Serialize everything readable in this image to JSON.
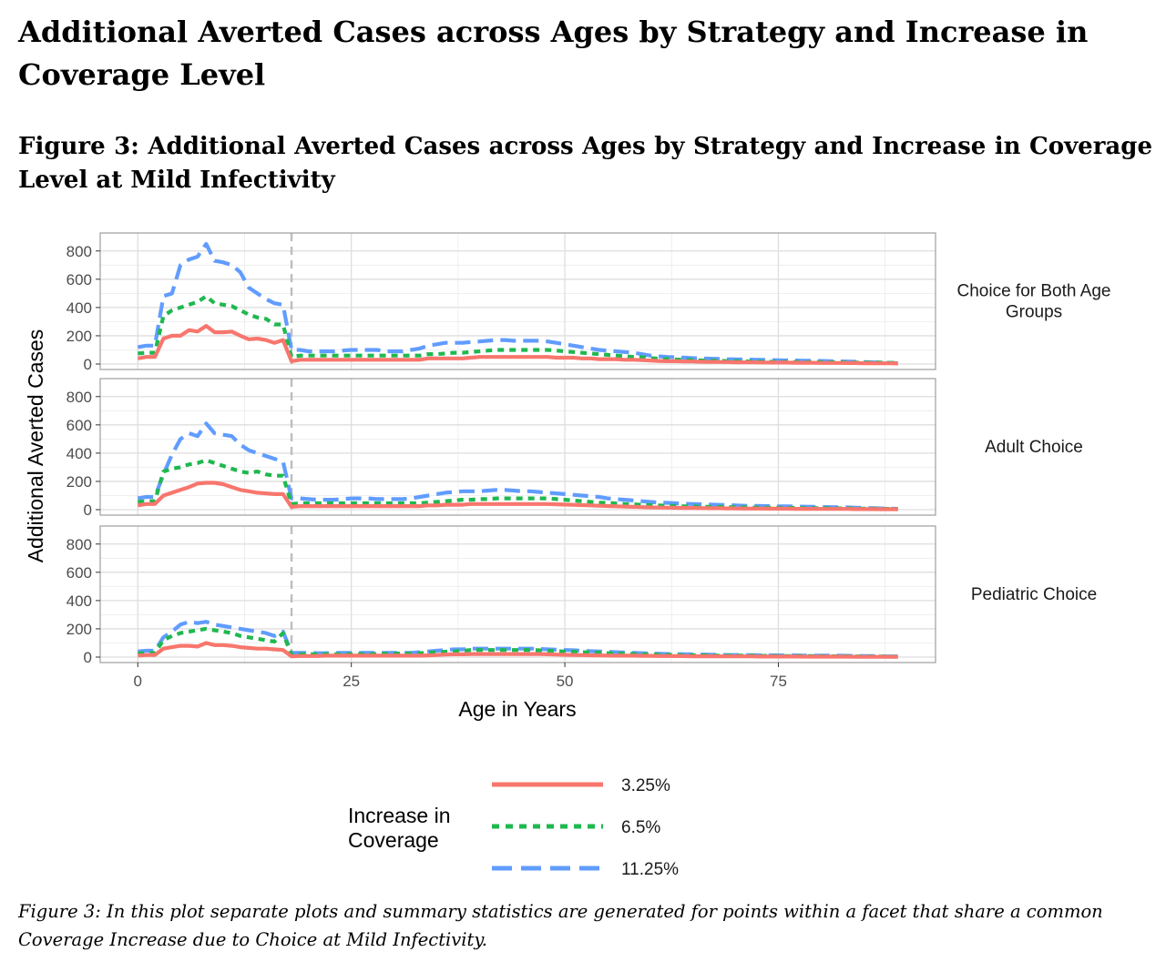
{
  "document": {
    "title": "Additional Averted Cases across Ages by Strategy and Increase in Coverage Level",
    "figure_title": "Figure 3: Additional Averted Cases across Ages by Strategy and Increase in Coverage Level at Mild Infectivity",
    "caption": "Figure 3: In this plot separate plots and summary statistics are generated for points within a facet that share a common Coverage Increase due to Choice at Mild Infectivity."
  },
  "colors": {
    "series_3_25": "#F8766D",
    "series_6_5": "#1FB84F",
    "series_11_25": "#619CFF",
    "grid": "#DEDEDE",
    "panel_border": "#9E9E9E",
    "vline": "#BDBDBD"
  },
  "chart_data": {
    "type": "line",
    "xlabel": "Age in Years",
    "ylabel": "Additional Averted Cases",
    "xlim": [
      0,
      89
    ],
    "ylim": [
      0,
      850
    ],
    "x_ticks": [
      0,
      25,
      50,
      75
    ],
    "y_ticks": [
      0,
      200,
      400,
      600,
      800
    ],
    "grid": true,
    "legend_position": "bottom",
    "legend_title": "Increase in Coverage",
    "reference_line": {
      "x": 18,
      "style": "dashed"
    },
    "x": [
      0,
      1,
      2,
      3,
      4,
      5,
      6,
      7,
      8,
      9,
      10,
      11,
      12,
      13,
      14,
      15,
      16,
      17,
      18,
      19,
      20,
      21,
      22,
      23,
      24,
      25,
      26,
      27,
      28,
      29,
      30,
      31,
      32,
      33,
      34,
      35,
      36,
      37,
      38,
      39,
      40,
      41,
      42,
      43,
      44,
      45,
      46,
      47,
      48,
      49,
      50,
      51,
      52,
      53,
      54,
      55,
      56,
      57,
      58,
      59,
      60,
      61,
      62,
      63,
      64,
      65,
      66,
      67,
      68,
      69,
      70,
      71,
      72,
      73,
      74,
      75,
      76,
      77,
      78,
      79,
      80,
      81,
      82,
      83,
      84,
      85,
      86,
      87,
      88,
      89
    ],
    "legend": [
      {
        "name": "3.25%",
        "color": "#F8766D",
        "dash": "solid"
      },
      {
        "name": "6.5%",
        "color": "#1FB84F",
        "dash": "dotted"
      },
      {
        "name": "11.25%",
        "color": "#619CFF",
        "dash": "dashed"
      }
    ],
    "facets": [
      {
        "label": "Choice for Both Age Groups",
        "series": [
          {
            "name": "3.25%",
            "values": [
              40,
              50,
              50,
              180,
              200,
              200,
              240,
              230,
              270,
              225,
              225,
              230,
              200,
              175,
              180,
              170,
              150,
              170,
              20,
              30,
              30,
              30,
              30,
              30,
              30,
              30,
              30,
              30,
              30,
              30,
              30,
              30,
              30,
              30,
              40,
              40,
              40,
              40,
              40,
              45,
              50,
              50,
              50,
              50,
              50,
              50,
              50,
              50,
              50,
              45,
              45,
              45,
              40,
              40,
              35,
              35,
              35,
              30,
              30,
              28,
              25,
              22,
              20,
              20,
              18,
              18,
              16,
              15,
              15,
              14,
              12,
              12,
              12,
              11,
              10,
              10,
              10,
              9,
              9,
              9,
              8,
              8,
              8,
              7,
              7,
              6,
              6,
              5,
              5,
              4
            ]
          },
          {
            "name": "6.5%",
            "values": [
              75,
              80,
              80,
              340,
              380,
              400,
              420,
              440,
              480,
              430,
              420,
              410,
              380,
              350,
              330,
              320,
              280,
              280,
              50,
              60,
              60,
              60,
              60,
              60,
              60,
              60,
              60,
              60,
              60,
              60,
              60,
              60,
              60,
              60,
              70,
              70,
              75,
              80,
              80,
              85,
              90,
              95,
              100,
              100,
              100,
              100,
              100,
              100,
              100,
              95,
              90,
              85,
              80,
              75,
              70,
              65,
              60,
              55,
              50,
              48,
              42,
              38,
              35,
              32,
              30,
              28,
              26,
              24,
              22,
              21,
              20,
              19,
              18,
              17,
              16,
              15,
              15,
              14,
              14,
              13,
              13,
              12,
              12,
              11,
              11,
              10,
              10,
              10,
              9,
              8
            ]
          },
          {
            "name": "11.25%",
            "values": [
              120,
              130,
              130,
              480,
              500,
              700,
              740,
              760,
              850,
              730,
              720,
              700,
              650,
              540,
              500,
              460,
              430,
              420,
              100,
              100,
              90,
              90,
              90,
              90,
              95,
              100,
              100,
              100,
              100,
              90,
              90,
              90,
              100,
              110,
              130,
              140,
              150,
              150,
              150,
              155,
              160,
              165,
              170,
              170,
              165,
              165,
              165,
              165,
              160,
              150,
              140,
              130,
              120,
              110,
              100,
              95,
              90,
              85,
              80,
              70,
              60,
              55,
              50,
              48,
              45,
              42,
              40,
              38,
              36,
              34,
              33,
              32,
              31,
              30,
              28,
              27,
              26,
              25,
              24,
              23,
              22,
              20,
              19,
              18,
              16,
              14,
              12,
              10,
              8,
              6
            ]
          }
        ]
      },
      {
        "label": "Adult Choice",
        "series": [
          {
            "name": "3.25%",
            "values": [
              30,
              40,
              40,
              100,
              120,
              140,
              160,
              185,
              190,
              190,
              180,
              160,
              140,
              130,
              120,
              115,
              110,
              110,
              20,
              25,
              25,
              25,
              25,
              25,
              25,
              25,
              25,
              25,
              25,
              25,
              25,
              25,
              25,
              25,
              30,
              30,
              35,
              35,
              35,
              40,
              40,
              40,
              40,
              40,
              40,
              40,
              40,
              40,
              40,
              38,
              36,
              34,
              32,
              30,
              28,
              26,
              24,
              22,
              20,
              18,
              16,
              15,
              14,
              13,
              12,
              12,
              11,
              10,
              10,
              9,
              9,
              8,
              8,
              8,
              7,
              7,
              7,
              6,
              6,
              6,
              5,
              5,
              5,
              5,
              4,
              4,
              4,
              3,
              3,
              3
            ]
          },
          {
            "name": "6.5%",
            "values": [
              55,
              60,
              60,
              270,
              290,
              300,
              320,
              330,
              350,
              330,
              310,
              290,
              270,
              260,
              270,
              250,
              240,
              240,
              40,
              45,
              45,
              45,
              45,
              45,
              45,
              45,
              45,
              45,
              45,
              45,
              45,
              45,
              45,
              45,
              50,
              55,
              60,
              65,
              70,
              70,
              75,
              75,
              80,
              80,
              80,
              80,
              80,
              80,
              80,
              75,
              70,
              65,
              60,
              55,
              50,
              48,
              44,
              40,
              38,
              35,
              32,
              30,
              28,
              26,
              24,
              22,
              21,
              20,
              19,
              18,
              17,
              16,
              15,
              14,
              13,
              13,
              12,
              12,
              11,
              11,
              10,
              10,
              9,
              9,
              8,
              8,
              7,
              7,
              6,
              6
            ]
          },
          {
            "name": "11.25%",
            "values": [
              80,
              90,
              90,
              250,
              390,
              500,
              540,
              520,
              610,
              540,
              530,
              520,
              460,
              420,
              400,
              380,
              360,
              340,
              80,
              80,
              75,
              70,
              70,
              70,
              75,
              80,
              80,
              80,
              75,
              75,
              75,
              75,
              80,
              90,
              100,
              110,
              120,
              125,
              130,
              130,
              130,
              135,
              140,
              140,
              135,
              130,
              130,
              125,
              120,
              115,
              110,
              105,
              100,
              95,
              90,
              80,
              75,
              70,
              65,
              60,
              55,
              50,
              48,
              45,
              42,
              40,
              38,
              36,
              34,
              32,
              30,
              28,
              27,
              26,
              25,
              24,
              23,
              22,
              21,
              20,
              19,
              18,
              17,
              16,
              14,
              12,
              10,
              9,
              8,
              6
            ]
          }
        ]
      },
      {
        "label": "Pediatric Choice",
        "series": [
          {
            "name": "3.25%",
            "values": [
              10,
              15,
              15,
              60,
              70,
              80,
              80,
              75,
              100,
              85,
              85,
              80,
              70,
              65,
              60,
              60,
              55,
              50,
              5,
              8,
              8,
              8,
              10,
              10,
              10,
              10,
              10,
              10,
              10,
              10,
              10,
              10,
              10,
              10,
              12,
              15,
              18,
              20,
              20,
              22,
              22,
              22,
              22,
              22,
              22,
              22,
              22,
              22,
              20,
              18,
              16,
              15,
              14,
              13,
              12,
              11,
              10,
              10,
              10,
              9,
              9,
              8,
              8,
              7,
              7,
              6,
              6,
              6,
              5,
              5,
              5,
              5,
              5,
              4,
              4,
              4,
              4,
              4,
              3,
              3,
              3,
              3,
              3,
              3,
              2,
              2,
              2,
              2,
              2,
              2
            ]
          },
          {
            "name": "6.5%",
            "values": [
              25,
              30,
              30,
              120,
              150,
              170,
              180,
              190,
              200,
              190,
              180,
              170,
              150,
              140,
              130,
              120,
              110,
              170,
              15,
              20,
              20,
              20,
              20,
              20,
              20,
              20,
              20,
              20,
              22,
              24,
              25,
              25,
              25,
              28,
              30,
              35,
              38,
              40,
              45,
              50,
              50,
              50,
              50,
              50,
              50,
              50,
              50,
              48,
              45,
              42,
              40,
              38,
              35,
              32,
              30,
              28,
              26,
              24,
              22,
              20,
              18,
              17,
              16,
              15,
              14,
              13,
              12,
              12,
              11,
              11,
              10,
              10,
              10,
              9,
              9,
              8,
              8,
              8,
              7,
              7,
              6,
              6,
              6,
              5,
              5,
              4,
              4,
              4,
              3,
              3
            ]
          },
          {
            "name": "11.25%",
            "values": [
              40,
              45,
              45,
              140,
              180,
              230,
              250,
              240,
              250,
              230,
              220,
              210,
              200,
              190,
              180,
              170,
              150,
              180,
              30,
              30,
              30,
              28,
              28,
              30,
              30,
              30,
              30,
              30,
              30,
              30,
              30,
              30,
              30,
              35,
              40,
              45,
              50,
              55,
              55,
              60,
              60,
              60,
              60,
              60,
              60,
              60,
              60,
              58,
              55,
              52,
              50,
              48,
              45,
              42,
              40,
              38,
              35,
              32,
              30,
              28,
              26,
              24,
              22,
              21,
              20,
              19,
              18,
              17,
              16,
              15,
              15,
              14,
              14,
              13,
              13,
              12,
              12,
              12,
              11,
              11,
              10,
              10,
              10,
              9,
              9,
              8,
              7,
              6,
              5,
              4
            ]
          }
        ]
      }
    ]
  }
}
